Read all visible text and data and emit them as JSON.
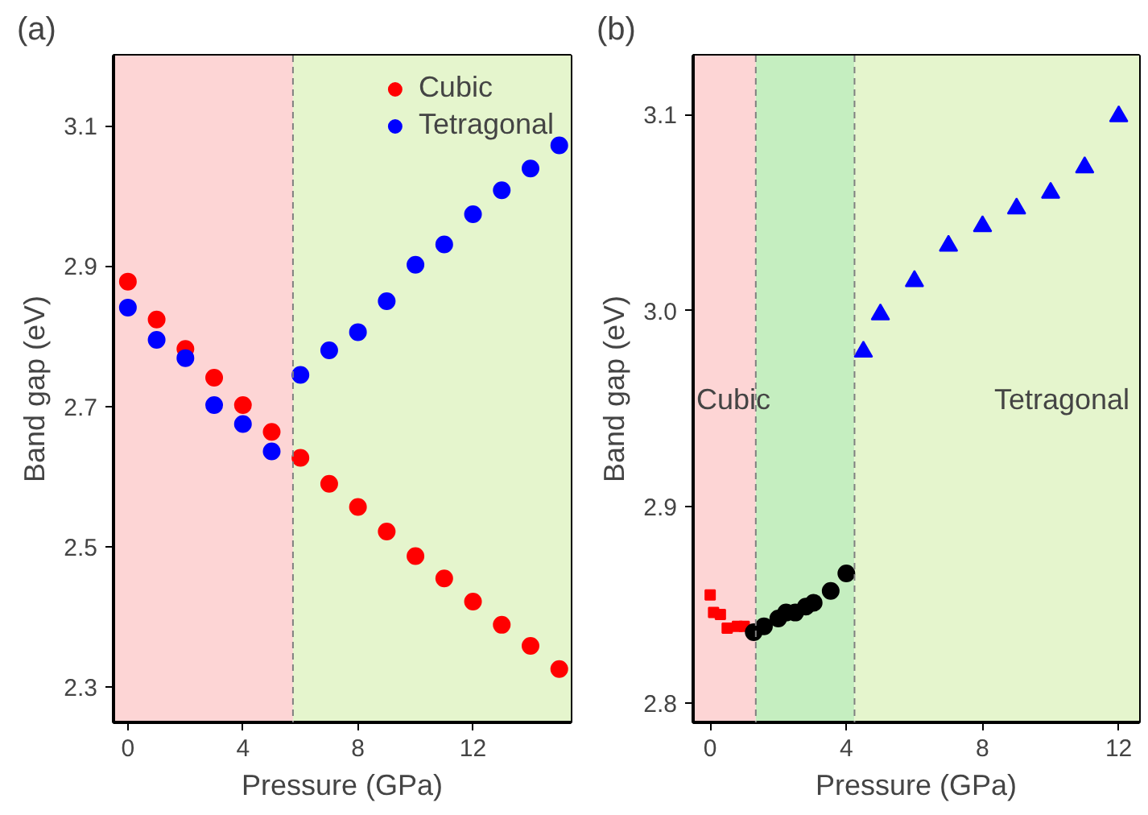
{
  "chart_data": [
    {
      "type": "scatter",
      "title": "(a)",
      "xlabel": "Pressure (GPa)",
      "ylabel": "Band gap (eV)",
      "xlim": [
        -0.5,
        15.4
      ],
      "xticks": [
        0,
        4,
        8,
        12
      ],
      "ylim": [
        2.25,
        3.2
      ],
      "yticks": [
        2.3,
        2.5,
        2.7,
        2.9,
        3.1
      ],
      "grid": false,
      "legend": "top right",
      "marker": "circle",
      "series": [
        {
          "name": "Cubic",
          "color": "#ff0000",
          "x": [
            0,
            1,
            2,
            3,
            4,
            5,
            6,
            7,
            8,
            9,
            10,
            11,
            12,
            13,
            14,
            15
          ],
          "values": [
            2.878,
            2.824,
            2.782,
            2.741,
            2.702,
            2.664,
            2.627,
            2.59,
            2.557,
            2.522,
            2.487,
            2.455,
            2.422,
            2.389,
            2.359,
            2.326
          ]
        },
        {
          "name": "Tetragonal",
          "color": "#0000ff",
          "x": [
            0,
            1,
            2,
            3,
            4,
            5,
            6,
            7,
            8,
            9,
            10,
            11,
            12,
            13,
            14,
            15
          ],
          "values": [
            2.841,
            2.795,
            2.769,
            2.702,
            2.675,
            2.636,
            2.745,
            2.78,
            2.806,
            2.85,
            2.902,
            2.931,
            2.974,
            3.008,
            3.039,
            3.072
          ]
        }
      ],
      "bands": [
        {
          "axis": "x",
          "from": -0.5,
          "to": 5.74,
          "color": "#fdd5d5"
        },
        {
          "axis": "x",
          "from": 5.74,
          "to": 15.4,
          "color": "#e5f5cd"
        }
      ],
      "ref_lines": [
        {
          "axis": "x",
          "value": 5.74,
          "color": "#808080",
          "line_style": "dashed"
        }
      ]
    },
    {
      "type": "scatter",
      "title": "(b)",
      "xlabel": "Pressure (GPa)",
      "ylabel": "Band gap (eV)",
      "xlim": [
        -0.5,
        12.6
      ],
      "xticks": [
        0,
        4,
        8,
        12
      ],
      "ylim": [
        2.79,
        3.13
      ],
      "yticks": [
        2.8,
        2.9,
        {
          "value": 3.0,
          "label": "3.0"
        },
        3.1
      ],
      "grid": false,
      "series": [
        {
          "color": "#ff0000",
          "marker": "square",
          "x": [
            0,
            0.1,
            0.3,
            0.5,
            0.8,
            1.0
          ],
          "values": [
            2.855,
            2.846,
            2.845,
            2.838,
            2.839,
            2.839
          ]
        },
        {
          "color": "#000000",
          "marker": "circle",
          "x": [
            1.28,
            1.58,
            2.0,
            2.23,
            2.5,
            2.81,
            3.04,
            3.54,
            4.0
          ],
          "values": [
            2.836,
            2.839,
            2.843,
            2.846,
            2.846,
            2.849,
            2.851,
            2.857,
            2.866
          ]
        },
        {
          "color": "#0000ff",
          "marker": "triangle",
          "x": [
            4.5,
            5,
            6,
            7,
            8,
            9,
            10,
            11,
            12
          ],
          "values": [
            2.979,
            2.998,
            3.015,
            3.033,
            3.043,
            3.052,
            3.06,
            3.073,
            3.099
          ]
        }
      ],
      "bands": [
        {
          "axis": "x",
          "from": -0.5,
          "to": 1.34,
          "color": "#fdd5d5"
        },
        {
          "axis": "x",
          "from": 1.34,
          "to": 4.24,
          "color": "#c5eec0"
        },
        {
          "axis": "x",
          "from": 4.24,
          "to": 12.6,
          "color": "#e5f5cd"
        }
      ],
      "ref_lines": [
        {
          "axis": "x",
          "value": 1.34,
          "color": "#808080",
          "line_style": "dashed"
        },
        {
          "axis": "x",
          "value": 4.24,
          "color": "#808080",
          "line_style": "dashed"
        }
      ],
      "annotations": [
        "Cubic",
        "Tetragonal"
      ]
    }
  ]
}
